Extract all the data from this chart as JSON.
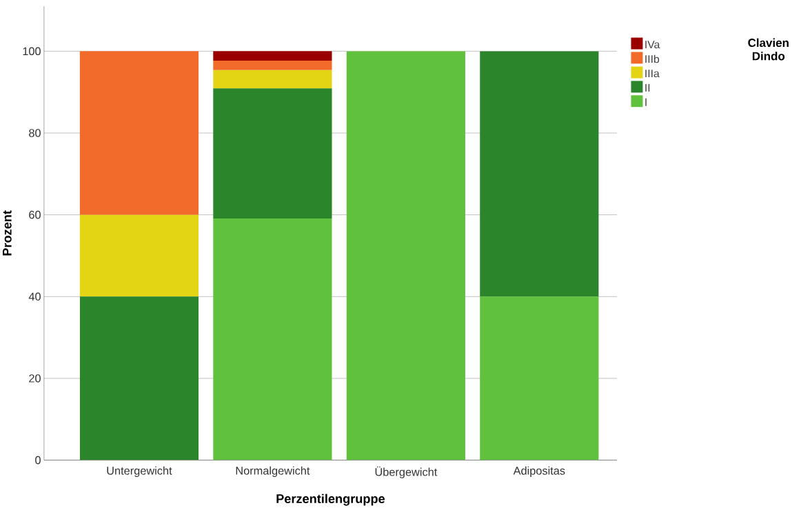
{
  "chart_data": {
    "type": "bar",
    "stacked": true,
    "xlabel": "Perzentilengruppe",
    "ylabel": "Prozent",
    "legend_title": "Clavien Dindo",
    "categories": [
      "Untergewicht",
      "Normalgewicht",
      "Übergewicht",
      "Adipositas"
    ],
    "series": [
      {
        "name": "I",
        "color": "#60c13c",
        "values": [
          0,
          59.1,
          100,
          40
        ]
      },
      {
        "name": "II",
        "color": "#2b852b",
        "values": [
          40,
          31.8,
          0,
          60
        ]
      },
      {
        "name": "IIIa",
        "color": "#e3d514",
        "values": [
          20,
          4.5,
          0,
          0
        ]
      },
      {
        "name": "IIIb",
        "color": "#f26b2a",
        "values": [
          40,
          2.3,
          0,
          0
        ]
      },
      {
        "name": "IVa",
        "color": "#990000",
        "values": [
          0,
          2.3,
          0,
          0
        ]
      }
    ],
    "ylim": [
      0,
      111
    ],
    "yticks": [
      0,
      20,
      40,
      60,
      80,
      100
    ],
    "grid": "y",
    "legend": "top right"
  }
}
